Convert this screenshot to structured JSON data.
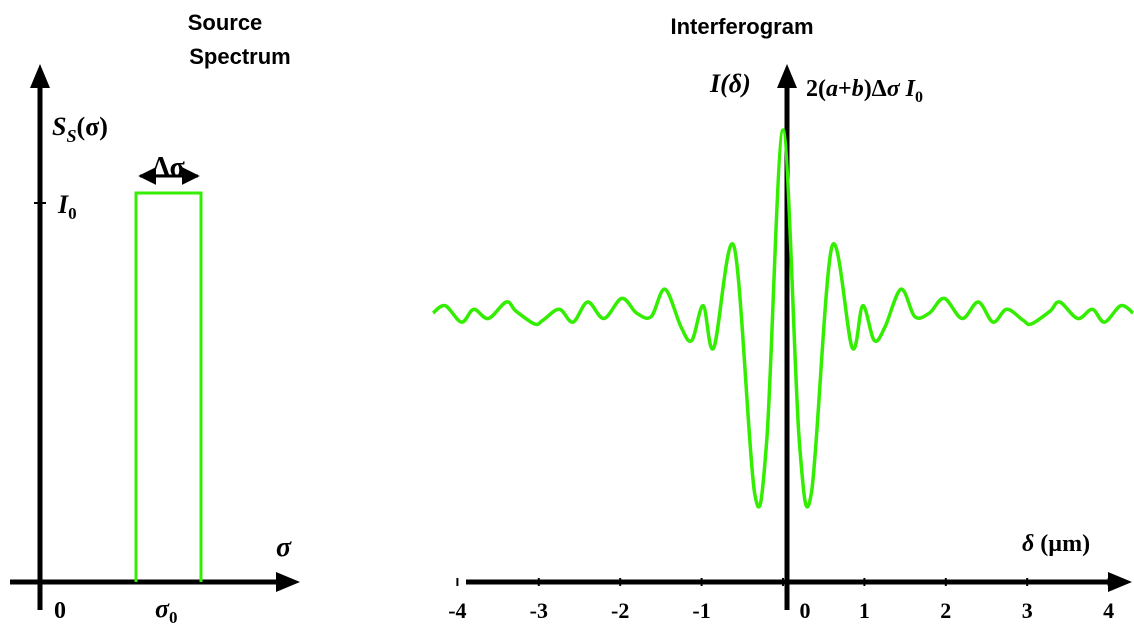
{
  "colors": {
    "curve": "#33ee00",
    "axis": "#000000",
    "background": "#ffffff"
  },
  "chart_data": [
    {
      "type": "line",
      "title_line1": "Source",
      "title_line2": "Spectrum",
      "ylabel": "S_S(σ)",
      "ylabel_main": "S",
      "ylabel_sub": "S",
      "ylabel_paren": "(σ)",
      "xlabel": "σ",
      "level_label_main": "I",
      "level_label_sub": "0",
      "width_label": "Δσ",
      "origin_label": "0",
      "center_label_main": "σ",
      "center_label_sub": "0",
      "series": [
        {
          "x": [
            0,
            0,
            1,
            1
          ],
          "y": [
            0,
            1,
            1,
            0
          ]
        }
      ]
    },
    {
      "type": "line",
      "title": "Interferogram",
      "ylabel": "I(δ)",
      "peak_label": "2(a+b)ΔσI0",
      "xlabel": "δ (µm)",
      "xticks": [
        "-4",
        "-3",
        "-2",
        "-1",
        "0",
        "1",
        "2",
        "3",
        "4"
      ],
      "xlim": [
        -4.3,
        4.3
      ],
      "ylim": [
        -1,
        1
      ],
      "series": [
        {
          "x": [
            -4.3,
            -4.15,
            -3.95,
            -3.8,
            -3.62,
            -3.4,
            -3.28,
            -3.05,
            -2.95,
            -2.75,
            -2.58,
            -2.4,
            -2.2,
            -1.98,
            -1.8,
            -1.62,
            -1.45,
            -1.25,
            -1.12,
            -0.98,
            -0.85,
            -0.6,
            -0.35,
            -0.2,
            0,
            0.2,
            0.35,
            0.6,
            0.85,
            0.98,
            1.12,
            1.25,
            1.45,
            1.62,
            1.8,
            1.98,
            2.2,
            2.4,
            2.58,
            2.75,
            2.95,
            3.05,
            3.28,
            3.4,
            3.62,
            3.8,
            3.95,
            4.15,
            4.3
          ],
          "y": [
            0,
            0.04,
            -0.05,
            0.02,
            -0.03,
            0.06,
            0.01,
            -0.06,
            -0.04,
            0.02,
            -0.05,
            0.06,
            -0.03,
            0.08,
            0.0,
            -0.02,
            0.13,
            -0.08,
            -0.15,
            0.04,
            -0.19,
            0.36,
            -0.98,
            -0.7,
            1.0,
            -0.7,
            -0.98,
            0.36,
            -0.19,
            0.04,
            -0.15,
            -0.08,
            0.13,
            -0.02,
            0.0,
            0.08,
            -0.03,
            0.06,
            -0.05,
            0.02,
            -0.04,
            -0.06,
            0.01,
            0.06,
            -0.03,
            0.02,
            -0.05,
            0.04,
            0
          ]
        }
      ]
    }
  ]
}
